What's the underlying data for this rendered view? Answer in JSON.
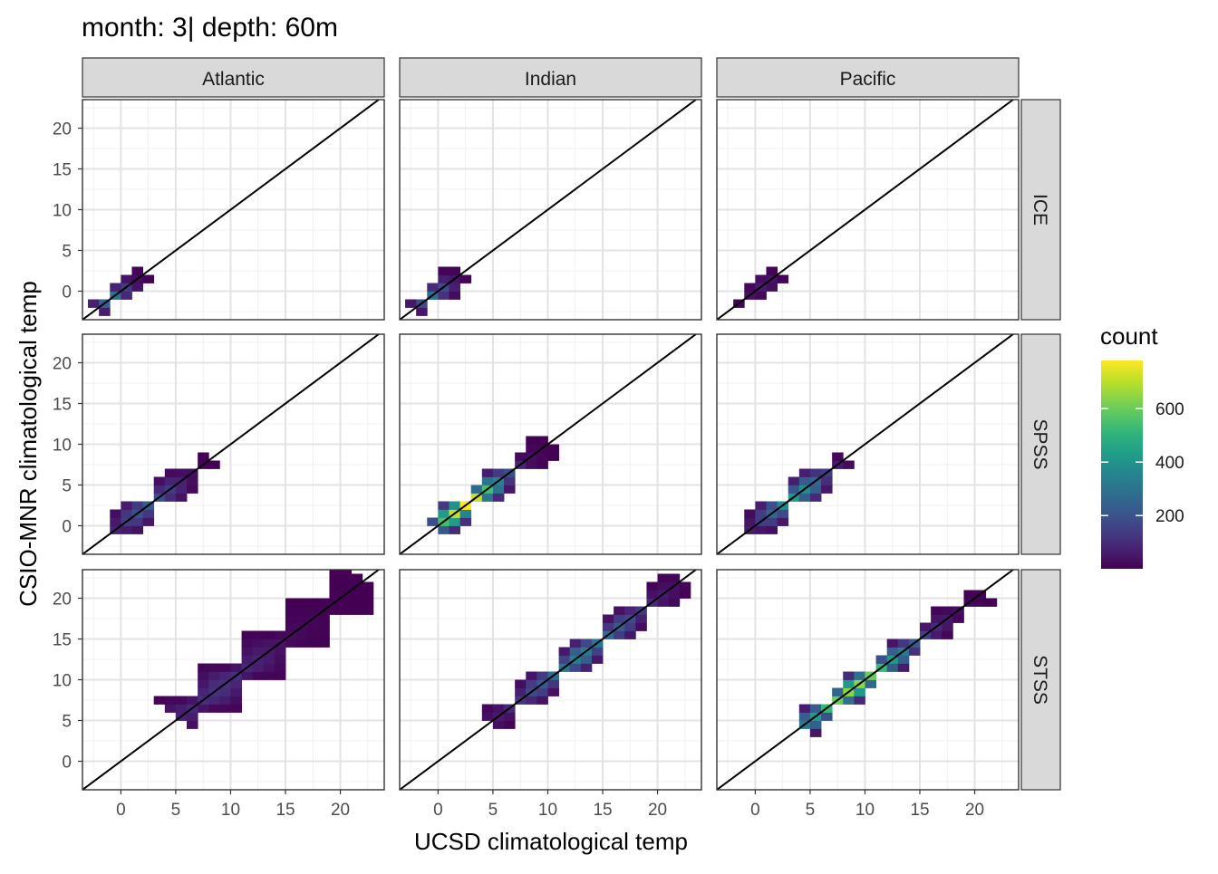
{
  "chart_data": {
    "type": "heatmap",
    "title": "month: 3| depth: 60m",
    "xlabel": "UCSD climatological temp",
    "ylabel": "CSIO-MNR climatological temp",
    "xlim": [
      -3.5,
      24
    ],
    "ylim": [
      -3.5,
      23.5
    ],
    "x_ticks": [
      0,
      5,
      10,
      15,
      20
    ],
    "y_ticks": [
      0,
      5,
      10,
      15,
      20
    ],
    "column_facets": [
      "Atlantic",
      "Indian",
      "Pacific"
    ],
    "row_facets": [
      "ICE",
      "SPSS",
      "STSS"
    ],
    "reference_line": "y = x",
    "grid": true,
    "legend": {
      "title": "count",
      "placement": "right",
      "ticks": [
        200,
        400,
        600
      ],
      "range": [
        1,
        780
      ],
      "colormap": "viridis"
    },
    "panels": [
      {
        "column": "Atlantic",
        "row": "ICE",
        "diag_start": -2,
        "diag_end": 2,
        "width": 1.2,
        "peak_at": -0.8,
        "peak": 300
      },
      {
        "column": "Indian",
        "row": "ICE",
        "diag_start": -2,
        "diag_end": 2,
        "width": 1.3,
        "peak_at": -0.5,
        "peak": 280
      },
      {
        "column": "Pacific",
        "row": "ICE",
        "diag_start": -1.5,
        "diag_end": 2,
        "width": 1.1,
        "peak_at": 0.5,
        "peak": 60
      },
      {
        "column": "Atlantic",
        "row": "SPSS",
        "diag_start": -0.5,
        "diag_end": 8,
        "width": 1.7,
        "peak_at": 2.5,
        "peak": 220
      },
      {
        "column": "Indian",
        "row": "SPSS",
        "diag_start": 0,
        "diag_end": 10,
        "width": 1.4,
        "peak_at": 2.5,
        "peak": 780
      },
      {
        "column": "Pacific",
        "row": "SPSS",
        "diag_start": -0.5,
        "diag_end": 8,
        "width": 1.6,
        "peak_at": 3.5,
        "peak": 420
      },
      {
        "column": "Atlantic",
        "row": "STSS",
        "diag_start": 5.5,
        "diag_end": 22,
        "width": 2.6,
        "peak_at": 9,
        "peak": 110
      },
      {
        "column": "Indian",
        "row": "STSS",
        "diag_start": 5,
        "diag_end": 22,
        "width": 1.5,
        "peak_at": 13,
        "peak": 330
      },
      {
        "column": "Pacific",
        "row": "STSS",
        "diag_start": 4.5,
        "diag_end": 20.5,
        "width": 1.3,
        "peak_at": 9,
        "peak": 650
      }
    ]
  }
}
